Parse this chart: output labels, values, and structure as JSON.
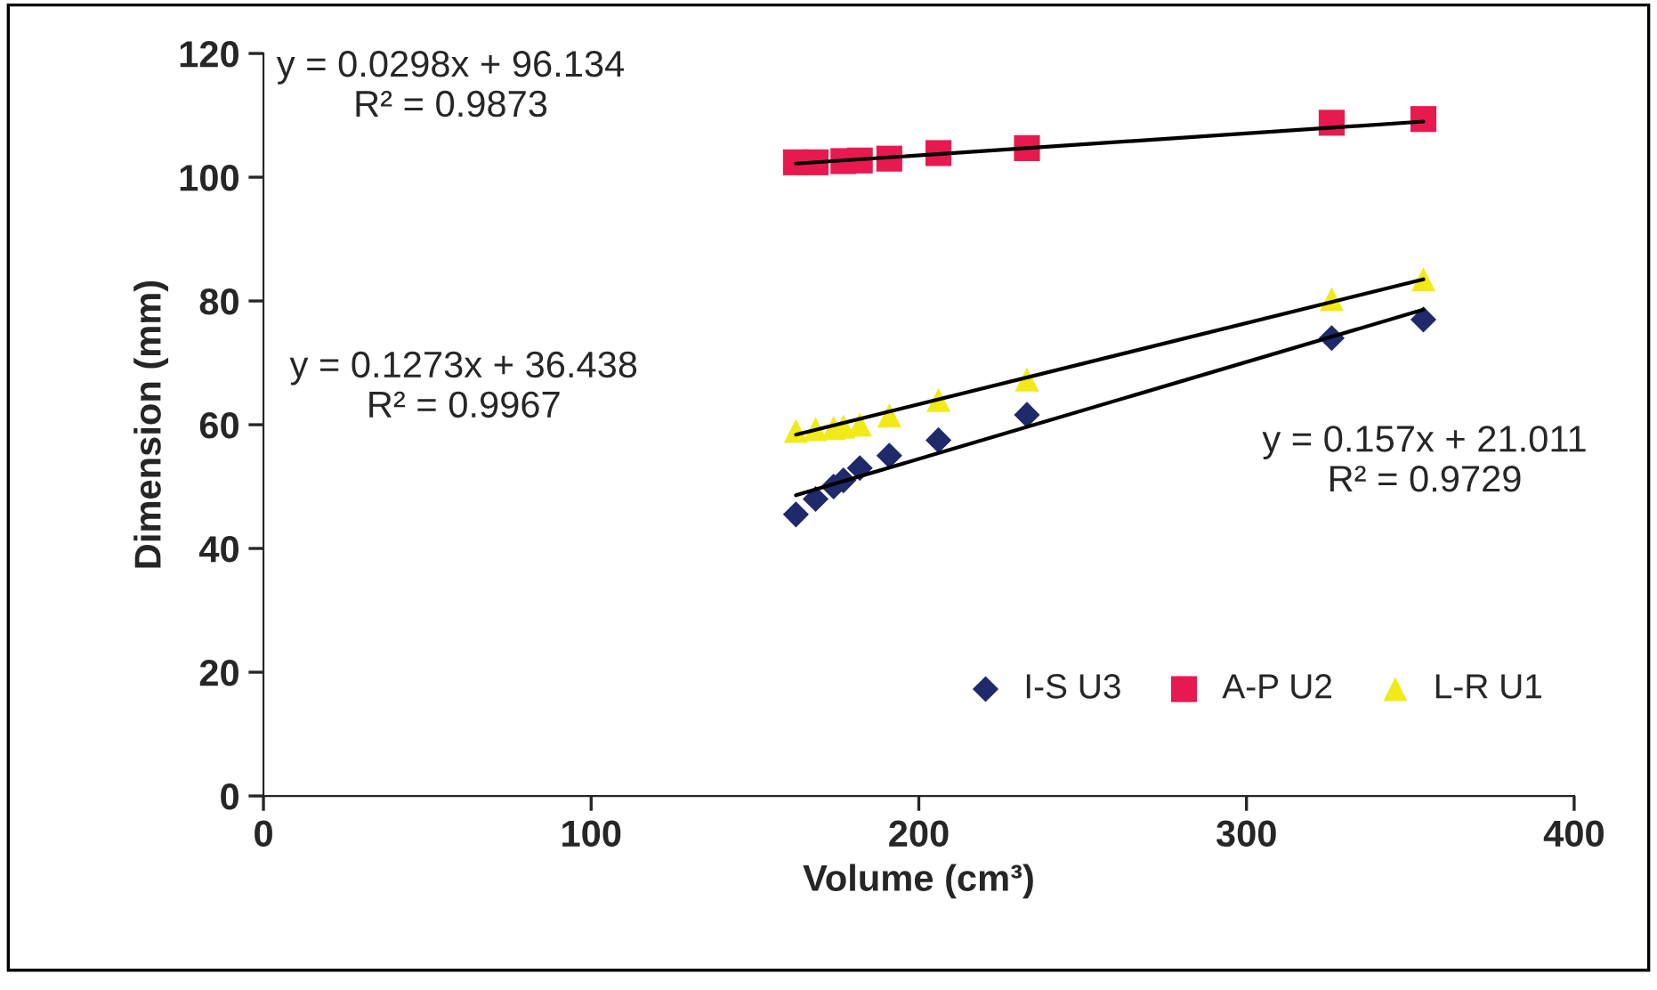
{
  "chart_data": {
    "type": "scatter",
    "xlabel": "Volume (cm³)",
    "ylabel": "Dimension (mm)",
    "xlim": [
      0,
      400
    ],
    "xticks": [
      0,
      100,
      200,
      300,
      400
    ],
    "ylim": [
      0,
      120
    ],
    "yticks": [
      0,
      20,
      40,
      60,
      80,
      100,
      120
    ],
    "grid": false,
    "legend": "bottom right",
    "series": [
      {
        "name": "I-S U3",
        "color": "#1f2a6b",
        "marker": "diamond",
        "x": [
          162.5,
          168.5,
          174,
          177,
          182,
          191,
          206,
          233,
          326,
          354
        ],
        "values": [
          45.5,
          48,
          50,
          51,
          53,
          55,
          57.5,
          61.6,
          74,
          77
        ]
      },
      {
        "name": "A-P U2",
        "color": "#e8194f",
        "marker": "square",
        "x": [
          162.5,
          168.5,
          174,
          177,
          182,
          191,
          206,
          233,
          326,
          354
        ],
        "values": [
          102.4,
          102.4,
          null,
          102.6,
          102.7,
          103,
          103.9,
          104.7,
          108.8,
          109.4
        ]
      },
      {
        "name": "L-R U1",
        "color": "#f2ea18",
        "marker": "triangle",
        "x": [
          162.5,
          168.5,
          174,
          177,
          182,
          191,
          206,
          233,
          326,
          354
        ],
        "values": [
          59,
          59.3,
          59.5,
          59.7,
          60,
          61.5,
          64,
          67.3,
          80.3,
          83.5
        ]
      },
      {
        "type": "line",
        "color": "#000000",
        "marker": "none",
        "x": [
          162.5,
          354
        ],
        "values": [
          48.6,
          78.6
        ]
      },
      {
        "type": "line",
        "color": "#000000",
        "marker": "none",
        "x": [
          162.5,
          354
        ],
        "values": [
          102.2,
          109
        ]
      },
      {
        "type": "line",
        "color": "#000000",
        "marker": "none",
        "x": [
          162.5,
          354
        ],
        "values": [
          58.4,
          83.5
        ]
      }
    ],
    "annotations": [
      "y = 0.0298x + 96.134\nR² = 0.9873",
      "y = 0.1273x + 36.438\nR² = 0.9967",
      "y = 0.157x + 21.011\nR² = 0.9729"
    ]
  }
}
